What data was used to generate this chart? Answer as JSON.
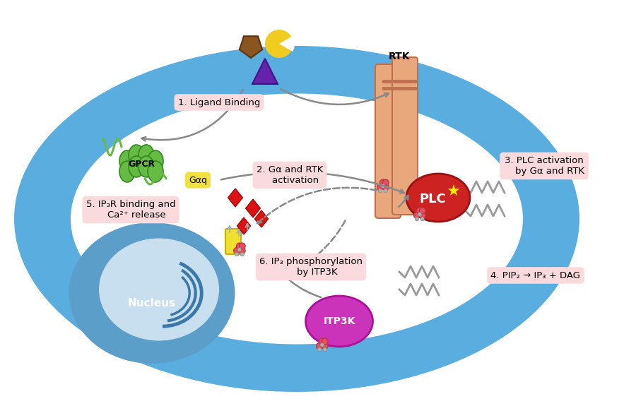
{
  "bg_color": "#ffffff",
  "cell_outer_color": "#5aaddf",
  "cell_inner_color": "#ffffff",
  "nucleus_color": "#5a9ec9",
  "label_box_color": "#fadadd",
  "gpcr_color": "#66bb44",
  "rtk_color": "#e8a87c",
  "plc_color": "#cc2222",
  "itp3k_color": "#dd44cc",
  "ga_box_color": "#f0e040",
  "ligand_brown": "#8B5a20",
  "ligand_yellow": "#f0c830",
  "tri_color": "#6622aa",
  "labels": {
    "1": "1. Ligand Binding",
    "2": "2. Gα and RTK\n    activation",
    "3": "3. PLC activation\n    by Gα and RTK",
    "4": "4. PIP₂ → IP₃ + DAG",
    "5": "5. IP₃R binding and\n    Ca²⁺ release",
    "6": "6. IP₃ phosphorylation\n    by ITP3K"
  },
  "rtk_label": "RTK",
  "gpcr_label": "GPCR",
  "plc_label": "PLC",
  "itp3k_label": "ITP3K",
  "ga_label": "Gαq",
  "nucleus_label": "Nucleus"
}
